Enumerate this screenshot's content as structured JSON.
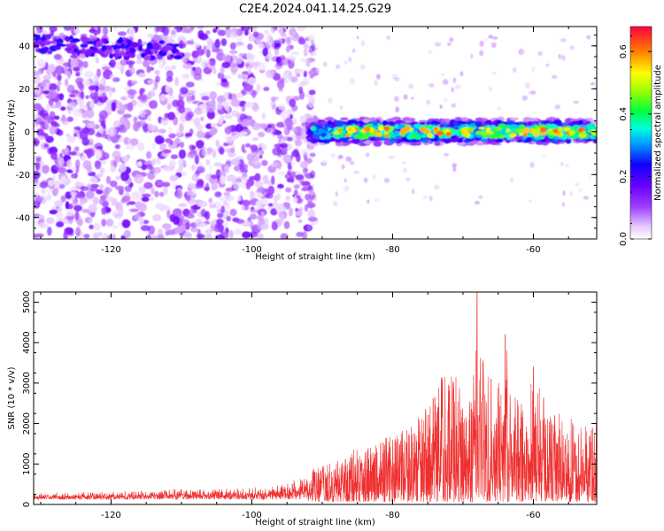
{
  "title": "C2E4.2024.041.14.25.G29",
  "colors": {
    "snr_line": "#f03030",
    "background": "#ffffff",
    "axis": "#000000"
  },
  "chart_data": [
    {
      "type": "heatmap",
      "panel": "top",
      "xlabel": "Height of straight line (km)",
      "ylabel": "Frequency (Hz)",
      "xlim": [
        -131,
        -51
      ],
      "ylim": [
        -50,
        49
      ],
      "x_ticks": [
        -120,
        -100,
        -80,
        -60
      ],
      "x_tick_labels": [
        "-120",
        "-100",
        "-80",
        "-60"
      ],
      "y_ticks": [
        -40,
        -20,
        0,
        20,
        40
      ],
      "y_tick_labels": [
        "-40",
        "-20",
        "0",
        "20",
        "40"
      ],
      "colorbar": {
        "label": "Normalized spectral amplitude",
        "range": [
          0.0,
          0.68
        ],
        "ticks": [
          0.0,
          0.2,
          0.4,
          0.6
        ],
        "tick_labels": [
          "0.0",
          "0.2",
          "0.4",
          "0.6"
        ],
        "colormap": "rainbow (white-violet-purple-blue-cyan-green-yellow-orange-red)"
      },
      "features": [
        {
          "description": "tracked signal band",
          "x_range": [
            -92,
            -51
          ],
          "frequency_hz": 0,
          "half_width_hz": 6,
          "amplitude_range": [
            0.1,
            0.65
          ]
        },
        {
          "description": "secondary band",
          "x_range": [
            -131,
            -110
          ],
          "frequency_hz": 36,
          "amplitude_range": [
            0.1,
            0.25
          ]
        },
        {
          "description": "scattered noise",
          "x_range": [
            -131,
            -92
          ],
          "frequency_range": [
            -50,
            49
          ],
          "amplitude_range": [
            0.0,
            0.15
          ]
        }
      ],
      "grid": false
    },
    {
      "type": "line",
      "panel": "bottom",
      "xlabel": "Height of straight line (km)",
      "ylabel": "SNR (10 * v/v)",
      "xlim": [
        -131,
        -51
      ],
      "ylim": [
        0,
        5250
      ],
      "x_ticks": [
        -120,
        -100,
        -80,
        -60
      ],
      "x_tick_labels": [
        "-120",
        "-100",
        "-80",
        "-60"
      ],
      "y_ticks": [
        0,
        1000,
        2000,
        3000,
        4000,
        5000
      ],
      "y_tick_labels": [
        "0",
        "1000",
        "2000",
        "3000",
        "4000",
        "5000"
      ],
      "grid": false,
      "series": [
        {
          "envelope": [
            {
              "x": -131,
              "y": 280
            },
            {
              "x": -120,
              "y": 330
            },
            {
              "x": -110,
              "y": 420
            },
            {
              "x": -100,
              "y": 420
            },
            {
              "x": -95,
              "y": 550
            },
            {
              "x": -92,
              "y": 800
            },
            {
              "x": -88,
              "y": 1000
            },
            {
              "x": -86,
              "y": 1300
            },
            {
              "x": -82,
              "y": 1550
            },
            {
              "x": -78,
              "y": 1800
            },
            {
              "x": -76,
              "y": 2200
            },
            {
              "x": -74,
              "y": 2650
            },
            {
              "x": -73,
              "y": 3150
            },
            {
              "x": -71,
              "y": 3150
            },
            {
              "x": -70,
              "y": 2700
            },
            {
              "x": -69.5,
              "y": 2100
            },
            {
              "x": -68.5,
              "y": 3200
            },
            {
              "x": -68,
              "y": 5250
            },
            {
              "x": -67.5,
              "y": 3900
            },
            {
              "x": -66,
              "y": 3100
            },
            {
              "x": -65,
              "y": 2850
            },
            {
              "x": -64,
              "y": 4200
            },
            {
              "x": -63,
              "y": 2600
            },
            {
              "x": -61,
              "y": 2550
            },
            {
              "x": -60,
              "y": 3400
            },
            {
              "x": -58,
              "y": 2300
            },
            {
              "x": -55,
              "y": 2100
            },
            {
              "x": -53,
              "y": 1900
            },
            {
              "x": -51,
              "y": 2000
            }
          ]
        }
      ]
    }
  ]
}
